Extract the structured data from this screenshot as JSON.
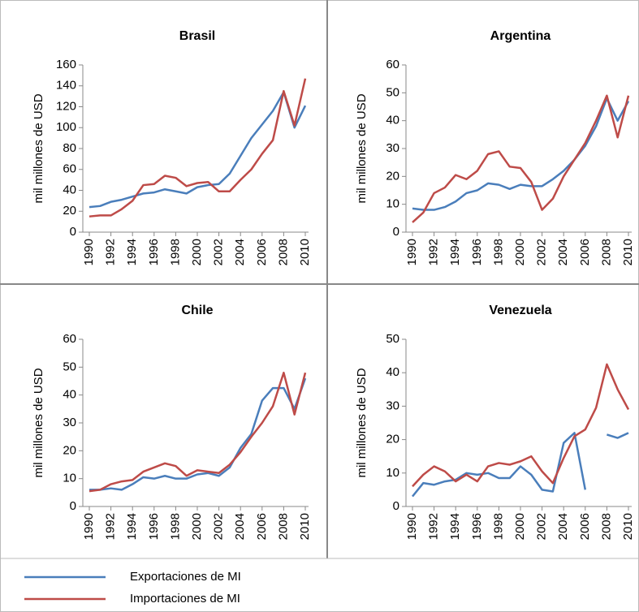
{
  "chart_data": [
    {
      "type": "line",
      "title": "Brasil",
      "y_label": "mil millones de USD",
      "x": [
        1990,
        1991,
        1992,
        1993,
        1994,
        1995,
        1996,
        1997,
        1998,
        1999,
        2000,
        2001,
        2002,
        2003,
        2004,
        2005,
        2006,
        2007,
        2008,
        2009,
        2010
      ],
      "xlim": [
        1990,
        2010
      ],
      "xticks": [
        1990,
        1992,
        1994,
        1996,
        1998,
        2000,
        2002,
        2004,
        2006,
        2008,
        2010
      ],
      "ylim": [
        0,
        160
      ],
      "yticks": [
        0,
        20,
        40,
        60,
        80,
        100,
        120,
        140,
        160
      ],
      "series": [
        {
          "name": "Exportaciones de MI",
          "color": "#4a7ebb",
          "values": [
            24,
            25,
            29,
            31,
            34,
            37,
            38,
            41,
            39,
            37,
            43,
            45,
            46,
            56,
            73,
            90,
            103,
            116,
            134,
            100,
            121
          ]
        },
        {
          "name": "Importaciones de MI",
          "color": "#be4b48",
          "values": [
            15,
            16,
            16,
            22,
            30,
            45,
            46,
            54,
            52,
            44,
            47,
            48,
            39,
            39,
            50,
            60,
            75,
            88,
            135,
            102,
            147
          ]
        }
      ]
    },
    {
      "type": "line",
      "title": "Argentina",
      "y_label": "mil millones de USD",
      "x": [
        1990,
        1991,
        1992,
        1993,
        1994,
        1995,
        1996,
        1997,
        1998,
        1999,
        2000,
        2001,
        2002,
        2003,
        2004,
        2005,
        2006,
        2007,
        2008,
        2009,
        2010
      ],
      "xlim": [
        1990,
        2010
      ],
      "xticks": [
        1990,
        1992,
        1994,
        1996,
        1998,
        2000,
        2002,
        2004,
        2006,
        2008,
        2010
      ],
      "ylim": [
        0,
        60
      ],
      "yticks": [
        0,
        10,
        20,
        30,
        40,
        50,
        60
      ],
      "series": [
        {
          "name": "Exportaciones de MI",
          "color": "#4a7ebb",
          "values": [
            8.5,
            8,
            8,
            9,
            11,
            14,
            15,
            17.5,
            17,
            15.5,
            17,
            16.5,
            16.5,
            19,
            22,
            26,
            31,
            38,
            48,
            40,
            47
          ]
        },
        {
          "name": "Importaciones de MI",
          "color": "#be4b48",
          "values": [
            3.5,
            7,
            14,
            16,
            20.5,
            19,
            22,
            28,
            29,
            23.5,
            23,
            18,
            8,
            12,
            20,
            26,
            32,
            40,
            49,
            34,
            49
          ]
        }
      ]
    },
    {
      "type": "line",
      "title": "Chile",
      "y_label": "mil millones de USD",
      "x": [
        1990,
        1991,
        1992,
        1993,
        1994,
        1995,
        1996,
        1997,
        1998,
        1999,
        2000,
        2001,
        2002,
        2003,
        2004,
        2005,
        2006,
        2007,
        2008,
        2009,
        2010
      ],
      "xlim": [
        1990,
        2010
      ],
      "xticks": [
        1990,
        1992,
        1994,
        1996,
        1998,
        2000,
        2002,
        2004,
        2006,
        2008,
        2010
      ],
      "ylim": [
        0,
        60
      ],
      "yticks": [
        0,
        10,
        20,
        30,
        40,
        50,
        60
      ],
      "series": [
        {
          "name": "Exportaciones de MI",
          "color": "#4a7ebb",
          "values": [
            6,
            6,
            6.5,
            6,
            8,
            10.5,
            10,
            11,
            10,
            10,
            11.5,
            12,
            11,
            14,
            21,
            26,
            38,
            42.5,
            42.5,
            35,
            46
          ]
        },
        {
          "name": "Importaciones de MI",
          "color": "#be4b48",
          "values": [
            5.5,
            6,
            8,
            9,
            9.5,
            12.5,
            14,
            15.5,
            14.5,
            11,
            13,
            12.5,
            12,
            15,
            19.5,
            25,
            30,
            36,
            48,
            33,
            48
          ]
        }
      ]
    },
    {
      "type": "line",
      "title": "Venezuela",
      "y_label": "mil millones de USD",
      "x": [
        1990,
        1991,
        1992,
        1993,
        1994,
        1995,
        1996,
        1997,
        1998,
        1999,
        2000,
        2001,
        2002,
        2003,
        2004,
        2005,
        2006,
        2007,
        2008,
        2009,
        2010
      ],
      "xlim": [
        1990,
        2010
      ],
      "xticks": [
        1990,
        1992,
        1994,
        1996,
        1998,
        2000,
        2002,
        2004,
        2006,
        2008,
        2010
      ],
      "ylim": [
        0,
        50
      ],
      "yticks": [
        0,
        10,
        20,
        30,
        40,
        50
      ],
      "series": [
        {
          "name": "Exportaciones de MI",
          "color": "#4a7ebb",
          "values": [
            3,
            7,
            6.5,
            7.5,
            8,
            10,
            9.5,
            10,
            8.5,
            8.5,
            12,
            9.5,
            5,
            4.5,
            19,
            22,
            5,
            null,
            21.5,
            20.5,
            22
          ]
        },
        {
          "name": "Importaciones de MI",
          "color": "#be4b48",
          "values": [
            6,
            9.5,
            12,
            10.5,
            7.5,
            9.5,
            7.5,
            12,
            13,
            12.5,
            13.5,
            15,
            10.5,
            7,
            14.5,
            21,
            23,
            29.5,
            42.5,
            35,
            29
          ]
        }
      ]
    }
  ]
}
